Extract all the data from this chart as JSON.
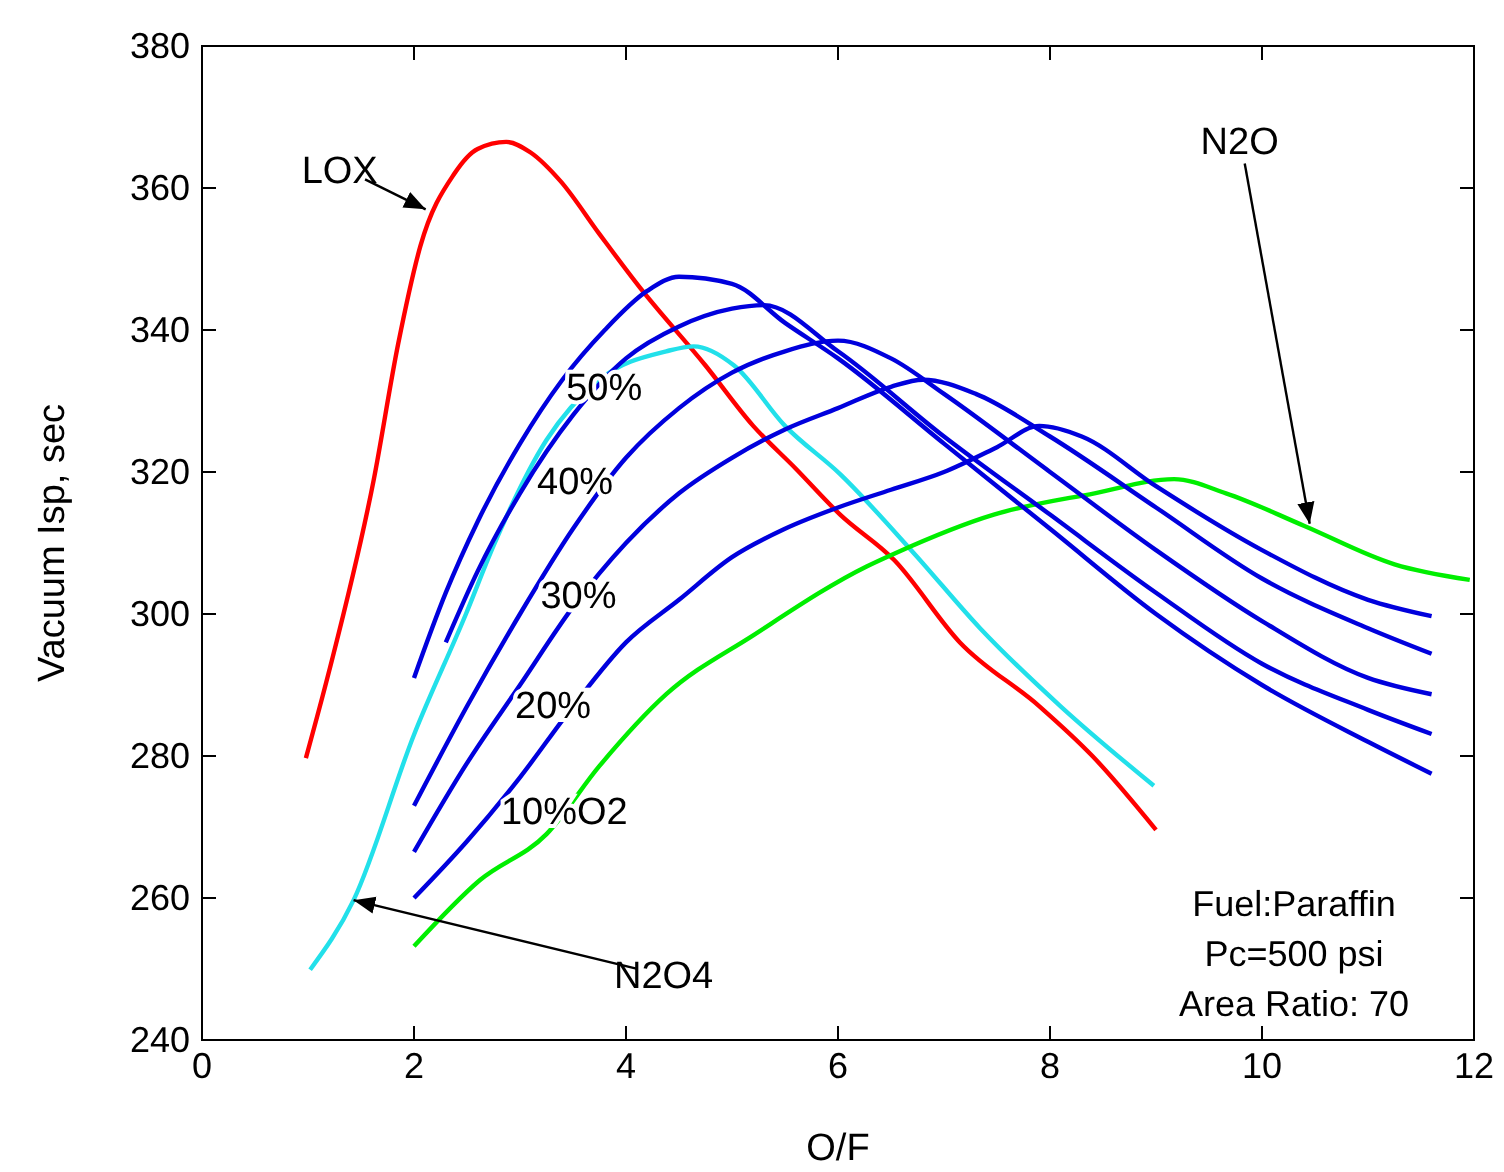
{
  "chart_data": {
    "type": "line",
    "xlabel": "O/F",
    "ylabel": "Vacuum Isp, sec",
    "xlim": [
      0,
      12
    ],
    "xticks": [
      0,
      2,
      4,
      6,
      8,
      10,
      12
    ],
    "ylim": [
      240,
      380
    ],
    "yticks": [
      240,
      260,
      280,
      300,
      320,
      340,
      360,
      380
    ],
    "grid": false,
    "marker": "none",
    "line_style": "solid",
    "series": [
      {
        "color": "#ff0000",
        "x": [
          0.98,
          1.2,
          1.62,
          1.85,
          2.06,
          2.38,
          2.6,
          2.87,
          3.1,
          3.38,
          3.75,
          4.13,
          4.75,
          5.2,
          5.6,
          6.02,
          6.53,
          7.15,
          7.9,
          8.4,
          9.0
        ],
        "values": [
          279.7,
          292,
          318.9,
          338,
          351.8,
          362,
          365.5,
          366.5,
          365,
          361,
          353.5,
          346,
          335,
          326.5,
          320.5,
          314,
          307.6,
          296,
          287,
          280,
          269.6
        ]
      },
      {
        "color": "#22e0ea",
        "x": [
          1.02,
          1.43,
          2.0,
          2.49,
          2.75,
          3.25,
          3.75,
          4.38,
          4.64,
          5.02,
          5.5,
          6.02,
          6.72,
          7.34,
          8.1,
          8.98
        ],
        "values": [
          249.9,
          259.7,
          283,
          300,
          309.6,
          324.5,
          333,
          337,
          337.7,
          335,
          326.5,
          319.7,
          308.5,
          298,
          287,
          275.8
        ]
      },
      {
        "color": "#00ee00",
        "x": [
          2.0,
          2.62,
          3.25,
          3.75,
          4.38,
          5.2,
          6.27,
          6.53,
          7.47,
          8.42,
          9.17,
          9.66,
          10.4,
          11.25,
          11.96
        ],
        "values": [
          253.2,
          262.5,
          269,
          278.6,
          288.7,
          297,
          306.7,
          308.5,
          314,
          317,
          319,
          317,
          312.4,
          307,
          304.8
        ]
      },
      {
        "name": "50%",
        "color": "#0000dd",
        "x": [
          2.0,
          2.3,
          2.6,
          3.0,
          3.4,
          3.8,
          4.2,
          4.5,
          5.0,
          5.5,
          6.0,
          7.0,
          8.0,
          9.0,
          10.0,
          11.0,
          11.6
        ],
        "values": [
          291,
          303,
          313,
          324,
          333,
          340,
          345.5,
          347.5,
          346.5,
          341,
          336,
          324,
          312,
          300,
          290,
          282,
          277.5
        ]
      },
      {
        "name": "40%",
        "color": "#0000dd",
        "x": [
          2.3,
          2.6,
          3.0,
          3.5,
          4.0,
          4.5,
          5.0,
          5.3,
          6.0,
          7.0,
          8.0,
          9.0,
          10.0,
          11.0,
          11.6
        ],
        "values": [
          296,
          306,
          317,
          328,
          336,
          340.5,
          343,
          343.5,
          337,
          325,
          314,
          303,
          293,
          286.5,
          283.1
        ]
      },
      {
        "name": "30%",
        "color": "#0000dd",
        "x": [
          2.0,
          2.5,
          3.0,
          3.5,
          4.0,
          4.5,
          5.0,
          5.5,
          6.0,
          6.5,
          7.0,
          8.0,
          9.0,
          10.0,
          11.0,
          11.6
        ],
        "values": [
          273,
          287,
          300,
          312,
          322,
          329,
          334,
          337,
          338.5,
          336,
          331,
          320,
          309,
          299,
          291,
          288.7
        ]
      },
      {
        "name": "20%",
        "color": "#0000dd",
        "x": [
          2.0,
          2.5,
          3.0,
          3.5,
          4.0,
          4.5,
          5.0,
          5.5,
          6.0,
          6.5,
          6.8,
          7.3,
          8.0,
          9.0,
          10.0,
          11.0,
          11.6
        ],
        "values": [
          266.5,
          279,
          290,
          301,
          310,
          317,
          322,
          326,
          329,
          332,
          333,
          331,
          325,
          315,
          305,
          298,
          294.4
        ]
      },
      {
        "name": "10%O2",
        "color": "#0000dd",
        "x": [
          2.0,
          2.5,
          3.0,
          3.5,
          4.0,
          4.5,
          5.0,
          5.5,
          6.0,
          6.5,
          7.0,
          7.5,
          7.9,
          8.3,
          9.0,
          10.0,
          11.0,
          11.6
        ],
        "values": [
          260,
          268,
          277,
          287,
          296,
          302,
          308,
          312,
          315,
          317.5,
          320,
          323.5,
          326.5,
          325,
          318,
          309,
          302,
          299.7
        ]
      }
    ],
    "annotations": [
      {
        "text": "LOX",
        "x": 2.11,
        "y": 357
      },
      {
        "text": "N2O",
        "x": 10.45,
        "y": 312.7
      },
      {
        "text": "N2O4",
        "x": 1.43,
        "y": 259.7
      },
      "Fuel:Paraffin",
      "Pc=500 psi",
      "Area Ratio: 70"
    ]
  }
}
